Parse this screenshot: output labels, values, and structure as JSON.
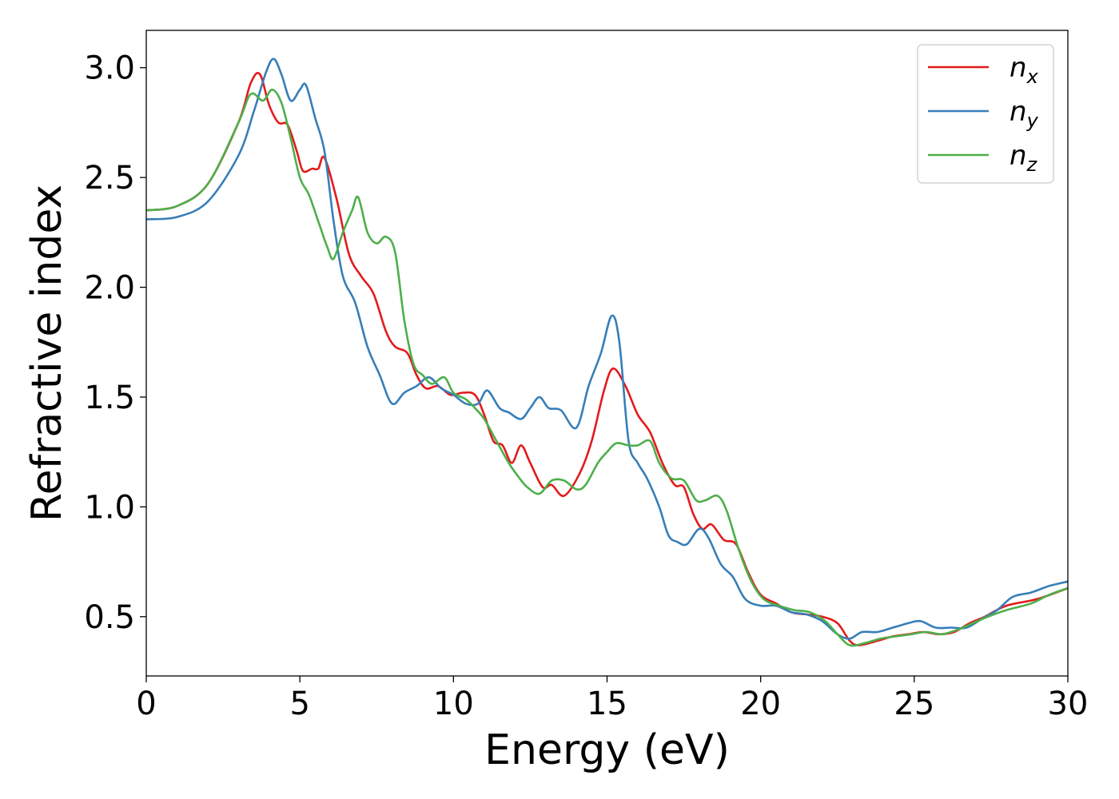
{
  "chart_data": {
    "type": "line",
    "title": "",
    "xlabel": "Energy (eV)",
    "ylabel": "Refractive index",
    "xlim": [
      0,
      30
    ],
    "ylim": [
      0.23,
      3.17
    ],
    "xticks": [
      0,
      5,
      10,
      15,
      20,
      25,
      30
    ],
    "yticks": [
      0.5,
      1.0,
      1.5,
      2.0,
      2.5,
      3.0
    ],
    "xtick_labels": [
      "0",
      "5",
      "10",
      "15",
      "20",
      "25",
      "30"
    ],
    "ytick_labels": [
      "0.5",
      "1.0",
      "1.5",
      "2.0",
      "2.5",
      "3.0"
    ],
    "grid": false,
    "legend_position": "top-right",
    "series": [
      {
        "name": "n",
        "subscript": "x",
        "color": "#e41a1c",
        "points": [
          [
            0,
            2.35
          ],
          [
            1,
            2.37
          ],
          [
            2,
            2.47
          ],
          [
            3,
            2.75
          ],
          [
            3.4,
            2.93
          ],
          [
            3.7,
            2.97
          ],
          [
            4.0,
            2.83
          ],
          [
            4.3,
            2.75
          ],
          [
            4.6,
            2.74
          ],
          [
            4.9,
            2.62
          ],
          [
            5.1,
            2.53
          ],
          [
            5.4,
            2.54
          ],
          [
            5.6,
            2.54
          ],
          [
            5.8,
            2.59
          ],
          [
            6.2,
            2.4
          ],
          [
            6.6,
            2.15
          ],
          [
            7.0,
            2.05
          ],
          [
            7.4,
            1.97
          ],
          [
            7.8,
            1.8
          ],
          [
            8.1,
            1.73
          ],
          [
            8.5,
            1.7
          ],
          [
            8.8,
            1.6
          ],
          [
            9.1,
            1.54
          ],
          [
            9.5,
            1.55
          ],
          [
            9.9,
            1.51
          ],
          [
            10.3,
            1.52
          ],
          [
            10.7,
            1.51
          ],
          [
            11.0,
            1.42
          ],
          [
            11.3,
            1.3
          ],
          [
            11.6,
            1.28
          ],
          [
            11.9,
            1.2
          ],
          [
            12.2,
            1.28
          ],
          [
            12.5,
            1.2
          ],
          [
            12.9,
            1.09
          ],
          [
            13.2,
            1.1
          ],
          [
            13.6,
            1.05
          ],
          [
            14.1,
            1.15
          ],
          [
            14.5,
            1.3
          ],
          [
            14.9,
            1.53
          ],
          [
            15.2,
            1.63
          ],
          [
            15.6,
            1.55
          ],
          [
            16.0,
            1.42
          ],
          [
            16.4,
            1.34
          ],
          [
            16.8,
            1.2
          ],
          [
            17.2,
            1.1
          ],
          [
            17.5,
            1.09
          ],
          [
            17.8,
            0.97
          ],
          [
            18.1,
            0.9
          ],
          [
            18.4,
            0.92
          ],
          [
            18.8,
            0.85
          ],
          [
            19.2,
            0.83
          ],
          [
            19.6,
            0.7
          ],
          [
            20.0,
            0.6
          ],
          [
            20.5,
            0.56
          ],
          [
            21.0,
            0.52
          ],
          [
            21.5,
            0.51
          ],
          [
            22.0,
            0.5
          ],
          [
            22.5,
            0.47
          ],
          [
            22.9,
            0.39
          ],
          [
            23.2,
            0.37
          ],
          [
            23.8,
            0.39
          ],
          [
            24.3,
            0.41
          ],
          [
            24.8,
            0.42
          ],
          [
            25.3,
            0.43
          ],
          [
            25.8,
            0.42
          ],
          [
            26.3,
            0.43
          ],
          [
            26.8,
            0.47
          ],
          [
            27.3,
            0.5
          ],
          [
            28.0,
            0.55
          ],
          [
            29.0,
            0.58
          ],
          [
            30,
            0.63
          ]
        ]
      },
      {
        "name": "n",
        "subscript": "y",
        "color": "#377eb8",
        "points": [
          [
            0,
            2.31
          ],
          [
            1,
            2.32
          ],
          [
            2,
            2.39
          ],
          [
            3,
            2.6
          ],
          [
            3.5,
            2.8
          ],
          [
            3.9,
            2.98
          ],
          [
            4.15,
            3.04
          ],
          [
            4.4,
            2.97
          ],
          [
            4.7,
            2.85
          ],
          [
            5.0,
            2.9
          ],
          [
            5.2,
            2.92
          ],
          [
            5.5,
            2.77
          ],
          [
            5.8,
            2.62
          ],
          [
            6.1,
            2.3
          ],
          [
            6.4,
            2.05
          ],
          [
            6.8,
            1.93
          ],
          [
            7.2,
            1.73
          ],
          [
            7.6,
            1.6
          ],
          [
            8.0,
            1.47
          ],
          [
            8.4,
            1.52
          ],
          [
            8.8,
            1.55
          ],
          [
            9.2,
            1.59
          ],
          [
            9.6,
            1.54
          ],
          [
            10.0,
            1.51
          ],
          [
            10.4,
            1.47
          ],
          [
            10.8,
            1.47
          ],
          [
            11.1,
            1.53
          ],
          [
            11.5,
            1.45
          ],
          [
            11.8,
            1.43
          ],
          [
            12.2,
            1.4
          ],
          [
            12.5,
            1.45
          ],
          [
            12.8,
            1.5
          ],
          [
            13.1,
            1.45
          ],
          [
            13.5,
            1.44
          ],
          [
            14.0,
            1.36
          ],
          [
            14.4,
            1.55
          ],
          [
            14.8,
            1.7
          ],
          [
            15.15,
            1.87
          ],
          [
            15.4,
            1.75
          ],
          [
            15.7,
            1.3
          ],
          [
            16.0,
            1.2
          ],
          [
            16.3,
            1.13
          ],
          [
            16.7,
            1.0
          ],
          [
            17.0,
            0.87
          ],
          [
            17.3,
            0.84
          ],
          [
            17.6,
            0.83
          ],
          [
            18.0,
            0.9
          ],
          [
            18.3,
            0.86
          ],
          [
            18.7,
            0.74
          ],
          [
            19.1,
            0.68
          ],
          [
            19.5,
            0.58
          ],
          [
            20.0,
            0.55
          ],
          [
            20.5,
            0.55
          ],
          [
            21.0,
            0.52
          ],
          [
            21.5,
            0.51
          ],
          [
            22.0,
            0.48
          ],
          [
            22.5,
            0.42
          ],
          [
            22.9,
            0.4
          ],
          [
            23.3,
            0.43
          ],
          [
            23.8,
            0.43
          ],
          [
            24.3,
            0.45
          ],
          [
            24.8,
            0.47
          ],
          [
            25.2,
            0.48
          ],
          [
            25.7,
            0.45
          ],
          [
            26.2,
            0.45
          ],
          [
            26.7,
            0.45
          ],
          [
            27.2,
            0.49
          ],
          [
            27.7,
            0.53
          ],
          [
            28.2,
            0.59
          ],
          [
            28.8,
            0.61
          ],
          [
            29.4,
            0.64
          ],
          [
            30,
            0.66
          ]
        ]
      },
      {
        "name": "n",
        "subscript": "z",
        "color": "#4daf4a",
        "points": [
          [
            0,
            2.35
          ],
          [
            1,
            2.37
          ],
          [
            2,
            2.47
          ],
          [
            3,
            2.75
          ],
          [
            3.4,
            2.88
          ],
          [
            3.8,
            2.85
          ],
          [
            4.1,
            2.9
          ],
          [
            4.4,
            2.84
          ],
          [
            4.7,
            2.68
          ],
          [
            5.0,
            2.5
          ],
          [
            5.3,
            2.42
          ],
          [
            5.6,
            2.3
          ],
          [
            5.9,
            2.18
          ],
          [
            6.1,
            2.13
          ],
          [
            6.4,
            2.25
          ],
          [
            6.7,
            2.35
          ],
          [
            6.9,
            2.41
          ],
          [
            7.2,
            2.25
          ],
          [
            7.5,
            2.2
          ],
          [
            7.8,
            2.23
          ],
          [
            8.1,
            2.16
          ],
          [
            8.4,
            1.85
          ],
          [
            8.7,
            1.65
          ],
          [
            9.0,
            1.6
          ],
          [
            9.3,
            1.56
          ],
          [
            9.7,
            1.59
          ],
          [
            10.0,
            1.52
          ],
          [
            10.4,
            1.49
          ],
          [
            10.7,
            1.45
          ],
          [
            11.0,
            1.4
          ],
          [
            11.4,
            1.3
          ],
          [
            11.8,
            1.2
          ],
          [
            12.1,
            1.14
          ],
          [
            12.4,
            1.09
          ],
          [
            12.8,
            1.06
          ],
          [
            13.2,
            1.12
          ],
          [
            13.6,
            1.12
          ],
          [
            14.0,
            1.08
          ],
          [
            14.3,
            1.1
          ],
          [
            14.7,
            1.2
          ],
          [
            15.0,
            1.25
          ],
          [
            15.3,
            1.29
          ],
          [
            15.7,
            1.28
          ],
          [
            16.0,
            1.28
          ],
          [
            16.4,
            1.3
          ],
          [
            16.7,
            1.2
          ],
          [
            17.1,
            1.13
          ],
          [
            17.5,
            1.12
          ],
          [
            17.9,
            1.03
          ],
          [
            18.2,
            1.03
          ],
          [
            18.6,
            1.05
          ],
          [
            18.9,
            0.98
          ],
          [
            19.3,
            0.8
          ],
          [
            19.7,
            0.66
          ],
          [
            20.1,
            0.58
          ],
          [
            20.6,
            0.55
          ],
          [
            21.1,
            0.53
          ],
          [
            21.6,
            0.52
          ],
          [
            22.1,
            0.48
          ],
          [
            22.5,
            0.42
          ],
          [
            22.9,
            0.37
          ],
          [
            23.4,
            0.38
          ],
          [
            23.9,
            0.4
          ],
          [
            24.4,
            0.41
          ],
          [
            24.9,
            0.42
          ],
          [
            25.4,
            0.43
          ],
          [
            25.9,
            0.42
          ],
          [
            26.4,
            0.44
          ],
          [
            26.9,
            0.47
          ],
          [
            27.4,
            0.5
          ],
          [
            28.0,
            0.53
          ],
          [
            28.8,
            0.56
          ],
          [
            29.4,
            0.6
          ],
          [
            30,
            0.63
          ]
        ]
      }
    ]
  }
}
